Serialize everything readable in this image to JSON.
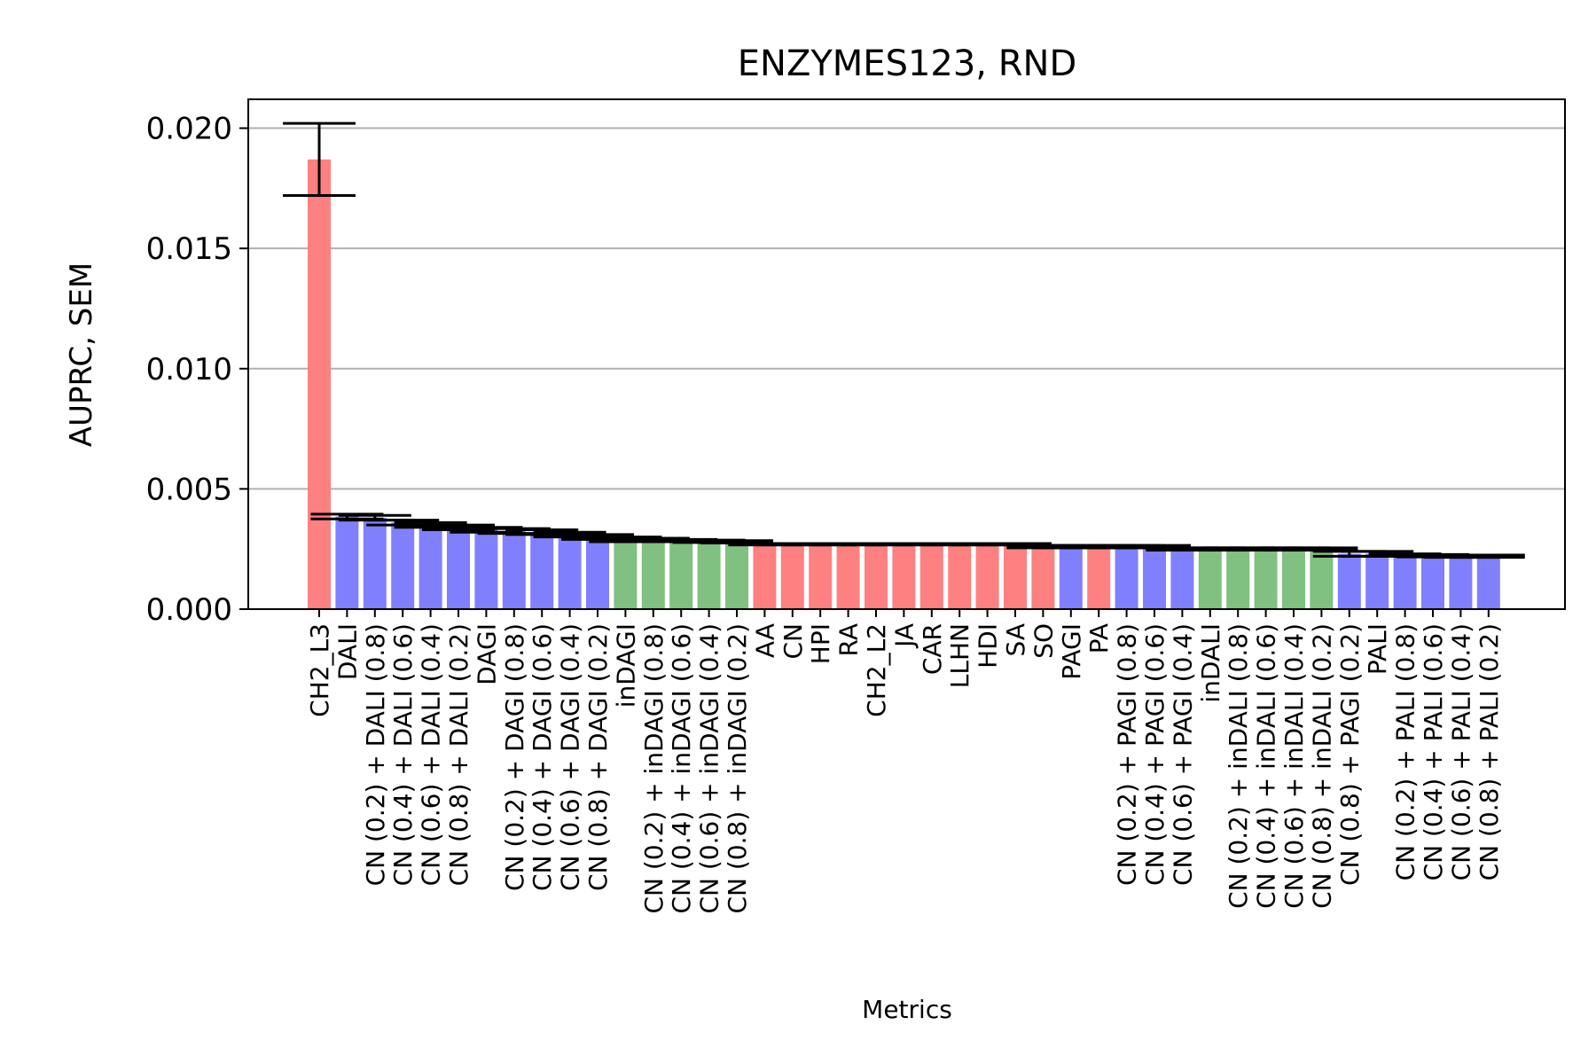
{
  "chart_data": {
    "type": "bar",
    "title": "ENZYMES123, RND",
    "xlabel": "Metrics",
    "ylabel": "AUPRC, SEM",
    "ylim": [
      0,
      0.0212
    ],
    "yticks": [
      "0.000",
      "0.005",
      "0.010",
      "0.015",
      "0.020"
    ],
    "ytick_values": [
      0,
      0.005,
      0.01,
      0.015,
      0.02
    ],
    "grid": "y",
    "colors": {
      "red": "#ff8080",
      "blue": "#8080ff",
      "green": "#80c080"
    },
    "categories": [
      "CH2_L3",
      "DALI",
      "CN (0.2) + DALI (0.8)",
      "CN (0.4) + DALI (0.6)",
      "CN (0.6) + DALI (0.4)",
      "CN (0.8) + DALI (0.2)",
      "DAGI",
      "CN (0.2) + DAGI (0.8)",
      "CN (0.4) + DAGI (0.6)",
      "CN (0.6) + DAGI (0.4)",
      "CN (0.8) + DAGI (0.2)",
      "inDAGI",
      "CN (0.2) + inDAGI (0.8)",
      "CN (0.4) + inDAGI (0.6)",
      "CN (0.6) + inDAGI (0.4)",
      "CN (0.8) + inDAGI (0.2)",
      "AA",
      "CN",
      "HPI",
      "RA",
      "CH2_L2",
      "JA",
      "CAR",
      "LLHN",
      "HDI",
      "SA",
      "SO",
      "PAGI",
      "PA",
      "CN (0.2) + PAGI (0.8)",
      "CN (0.4) + PAGI (0.6)",
      "CN (0.6) + PAGI (0.4)",
      "inDALI",
      "CN (0.2) + inDALI (0.8)",
      "CN (0.4) + inDALI (0.6)",
      "CN (0.6) + inDALI (0.4)",
      "CN (0.8) + inDALI (0.2)",
      "CN (0.8) + PAGI (0.2)",
      "PALI",
      "CN (0.2) + PALI (0.8)",
      "CN (0.4) + PALI (0.6)",
      "CN (0.6) + PALI (0.4)",
      "CN (0.8) + PALI (0.2)"
    ],
    "values": [
      0.0187,
      0.00385,
      0.0038,
      0.0036,
      0.0035,
      0.0034,
      0.0033,
      0.00325,
      0.0032,
      0.0031,
      0.003,
      0.0029,
      0.0029,
      0.00285,
      0.00282,
      0.0028,
      0.0027,
      0.0027,
      0.0027,
      0.0027,
      0.0027,
      0.0027,
      0.0027,
      0.0027,
      0.0027,
      0.0027,
      0.0026,
      0.0026,
      0.0026,
      0.0026,
      0.0026,
      0.0025,
      0.0025,
      0.0025,
      0.0025,
      0.0025,
      0.0025,
      0.0023,
      0.0023,
      0.00225,
      0.00222,
      0.0022,
      0.0022
    ],
    "sem": [
      0.0015,
      0.0001,
      0.0001,
      0.0001,
      0.0001,
      0.0001,
      0.0001,
      0.0001,
      0.0001,
      0.0001,
      0.0001,
      0.0001,
      5e-05,
      5e-05,
      5e-05,
      5e-05,
      3e-05,
      3e-05,
      3e-05,
      3e-05,
      3e-05,
      3e-05,
      3e-05,
      3e-05,
      3e-05,
      3e-05,
      5e-05,
      5e-05,
      5e-05,
      5e-05,
      5e-05,
      5e-05,
      5e-05,
      5e-05,
      5e-05,
      5e-05,
      5e-05,
      0.0001,
      0.0001,
      5e-05,
      5e-05,
      5e-05,
      5e-05
    ],
    "bar_colors": [
      "red",
      "blue",
      "blue",
      "blue",
      "blue",
      "blue",
      "blue",
      "blue",
      "blue",
      "blue",
      "blue",
      "green",
      "green",
      "green",
      "green",
      "green",
      "red",
      "red",
      "red",
      "red",
      "red",
      "red",
      "red",
      "red",
      "red",
      "red",
      "red",
      "blue",
      "red",
      "blue",
      "blue",
      "blue",
      "green",
      "green",
      "green",
      "green",
      "green",
      "blue",
      "blue",
      "blue",
      "blue",
      "blue",
      "blue"
    ]
  }
}
